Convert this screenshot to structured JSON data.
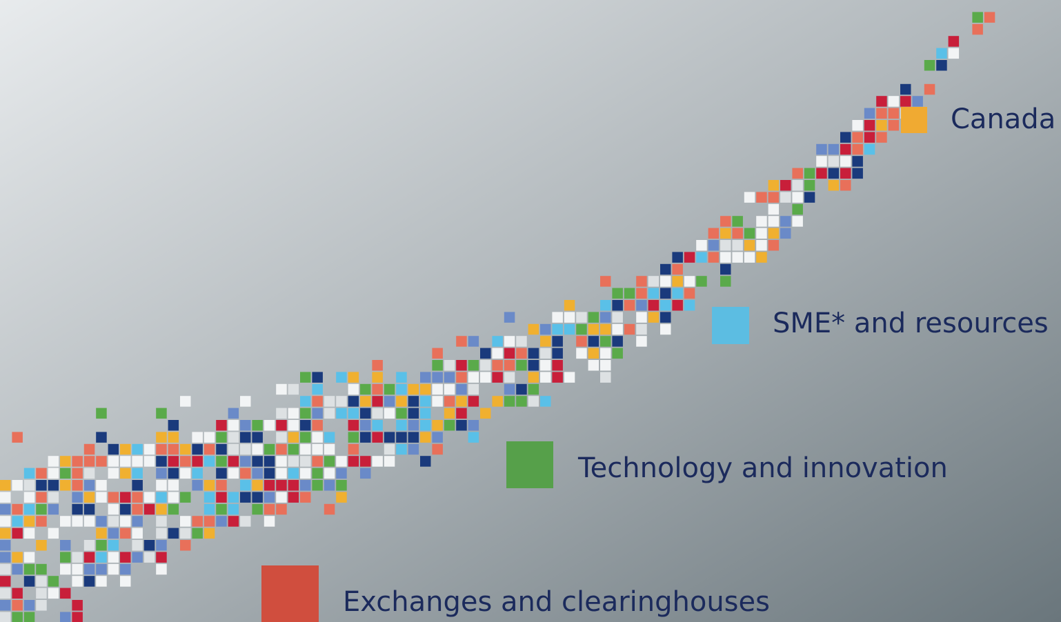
{
  "labels": [
    {
      "text": "Canada",
      "color": "#f0aa32"
    },
    {
      "text": "SME* and resources",
      "color": "#5cbde2"
    },
    {
      "text": "Technology and innovation",
      "color": "#56a04a"
    },
    {
      "text": "Exchanges and clearinghouses",
      "color": "#d04e3e"
    }
  ]
}
